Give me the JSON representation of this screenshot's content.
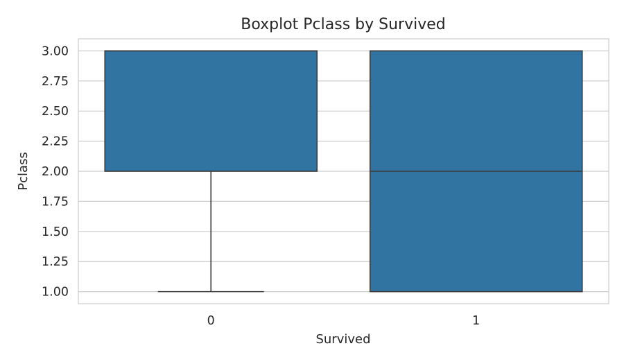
{
  "chart_data": {
    "type": "box",
    "title": "Boxplot Pclass by Survived",
    "xlabel": "Survived",
    "ylabel": "Pclass",
    "ylim": [
      0.9,
      3.1
    ],
    "yticks": [
      "1.00",
      "1.25",
      "1.50",
      "1.75",
      "2.00",
      "2.25",
      "2.50",
      "2.75",
      "3.00"
    ],
    "grid": true,
    "box_color": "#3274a1",
    "line_color": "#3a3a3a",
    "categories": [
      "0",
      "1"
    ],
    "boxes": [
      {
        "category": "0",
        "whisker_low": 1.0,
        "q1": 2.0,
        "median": 3.0,
        "q3": 3.0,
        "whisker_high": 3.0
      },
      {
        "category": "1",
        "whisker_low": 1.0,
        "q1": 1.0,
        "median": 2.0,
        "q3": 3.0,
        "whisker_high": 3.0
      }
    ]
  }
}
